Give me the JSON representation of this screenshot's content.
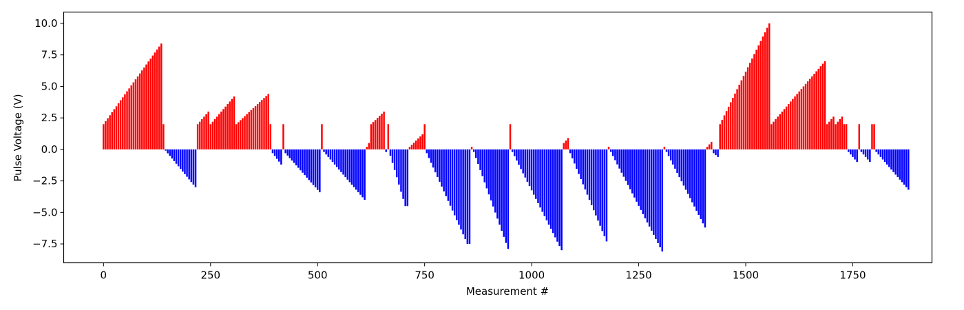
{
  "chart_data": {
    "type": "bar",
    "xlabel": "Measurement #",
    "ylabel": "Pulse Voltage (V)",
    "xlim": [
      -93,
      1935
    ],
    "ylim": [
      -9.0,
      10.9
    ],
    "xticks": [
      {
        "value": 0,
        "label": "0"
      },
      {
        "value": 250,
        "label": "250"
      },
      {
        "value": 500,
        "label": "500"
      },
      {
        "value": 750,
        "label": "750"
      },
      {
        "value": 1000,
        "label": "1000"
      },
      {
        "value": 1250,
        "label": "1250"
      },
      {
        "value": 1500,
        "label": "1500"
      },
      {
        "value": 1750,
        "label": "1750"
      }
    ],
    "yticks": [
      {
        "value": -7.5,
        "label": "−7.5"
      },
      {
        "value": -5.0,
        "label": "−5.0"
      },
      {
        "value": -2.5,
        "label": "−2.5"
      },
      {
        "value": 0.0,
        "label": "0.0"
      },
      {
        "value": 2.5,
        "label": "2.5"
      },
      {
        "value": 5.0,
        "label": "5.0"
      },
      {
        "value": 7.5,
        "label": "7.5"
      },
      {
        "value": 10.0,
        "label": "10.0"
      }
    ],
    "grid": false,
    "legend": false,
    "colors": {
      "positive": "#ff0000",
      "negative": "#0000ff"
    },
    "bar_spacing": 5,
    "series": [
      {
        "start": 0,
        "end": 135,
        "from": 2.0,
        "to": 8.4
      },
      {
        "start": 140,
        "end": 140,
        "from": 2.0,
        "to": 2.0
      },
      {
        "start": 145,
        "end": 215,
        "from": -0.1,
        "to": -3.0
      },
      {
        "start": 220,
        "end": 245,
        "from": 2.0,
        "to": 3.0
      },
      {
        "start": 250,
        "end": 305,
        "from": 2.0,
        "to": 4.2
      },
      {
        "start": 310,
        "end": 385,
        "from": 2.0,
        "to": 4.4
      },
      {
        "start": 390,
        "end": 390,
        "from": 2.0,
        "to": 2.0
      },
      {
        "start": 395,
        "end": 415,
        "from": -0.3,
        "to": -1.2
      },
      {
        "start": 420,
        "end": 420,
        "from": 2.0,
        "to": 2.0
      },
      {
        "start": 425,
        "end": 505,
        "from": -0.3,
        "to": -3.4
      },
      {
        "start": 510,
        "end": 510,
        "from": 2.0,
        "to": 2.0
      },
      {
        "start": 515,
        "end": 610,
        "from": -0.2,
        "to": -4.0
      },
      {
        "start": 615,
        "end": 620,
        "from": 0.2,
        "to": 0.5
      },
      {
        "start": 625,
        "end": 655,
        "from": 2.0,
        "to": 3.0
      },
      {
        "start": 660,
        "end": 660,
        "from": -0.2,
        "to": -0.2
      },
      {
        "start": 665,
        "end": 665,
        "from": 2.0,
        "to": 2.0
      },
      {
        "start": 670,
        "end": 705,
        "from": -0.5,
        "to": -4.5
      },
      {
        "start": 710,
        "end": 710,
        "from": -4.5,
        "to": -4.5
      },
      {
        "start": 715,
        "end": 745,
        "from": 0.2,
        "to": 1.2
      },
      {
        "start": 750,
        "end": 750,
        "from": 2.0,
        "to": 2.0
      },
      {
        "start": 755,
        "end": 850,
        "from": -0.3,
        "to": -7.5
      },
      {
        "start": 855,
        "end": 855,
        "from": -7.5,
        "to": -7.5
      },
      {
        "start": 860,
        "end": 860,
        "from": 0.2,
        "to": 0.2
      },
      {
        "start": 865,
        "end": 945,
        "from": -0.2,
        "to": -7.9
      },
      {
        "start": 950,
        "end": 950,
        "from": 2.0,
        "to": 2.0
      },
      {
        "start": 955,
        "end": 1070,
        "from": -0.2,
        "to": -8.0
      },
      {
        "start": 1075,
        "end": 1085,
        "from": 0.5,
        "to": 0.9
      },
      {
        "start": 1090,
        "end": 1175,
        "from": -0.3,
        "to": -7.3
      },
      {
        "start": 1180,
        "end": 1180,
        "from": 0.2,
        "to": 0.2
      },
      {
        "start": 1185,
        "end": 1305,
        "from": -0.2,
        "to": -8.1
      },
      {
        "start": 1310,
        "end": 1310,
        "from": 0.2,
        "to": 0.2
      },
      {
        "start": 1315,
        "end": 1405,
        "from": -0.2,
        "to": -6.2
      },
      {
        "start": 1410,
        "end": 1420,
        "from": 0.2,
        "to": 0.6
      },
      {
        "start": 1425,
        "end": 1435,
        "from": -0.3,
        "to": -0.6
      },
      {
        "start": 1440,
        "end": 1555,
        "from": 2.0,
        "to": 10.0
      },
      {
        "start": 1560,
        "end": 1685,
        "from": 2.0,
        "to": 7.0
      },
      {
        "start": 1690,
        "end": 1705,
        "from": 2.0,
        "to": 2.6
      },
      {
        "start": 1710,
        "end": 1725,
        "from": 2.0,
        "to": 2.6
      },
      {
        "start": 1730,
        "end": 1735,
        "from": 2.0,
        "to": 2.0
      },
      {
        "start": 1740,
        "end": 1760,
        "from": -0.2,
        "to": -1.0
      },
      {
        "start": 1765,
        "end": 1765,
        "from": 2.0,
        "to": 2.0
      },
      {
        "start": 1770,
        "end": 1790,
        "from": -0.2,
        "to": -1.0
      },
      {
        "start": 1795,
        "end": 1800,
        "from": 2.0,
        "to": 2.0
      },
      {
        "start": 1805,
        "end": 1880,
        "from": -0.2,
        "to": -3.2
      }
    ]
  }
}
